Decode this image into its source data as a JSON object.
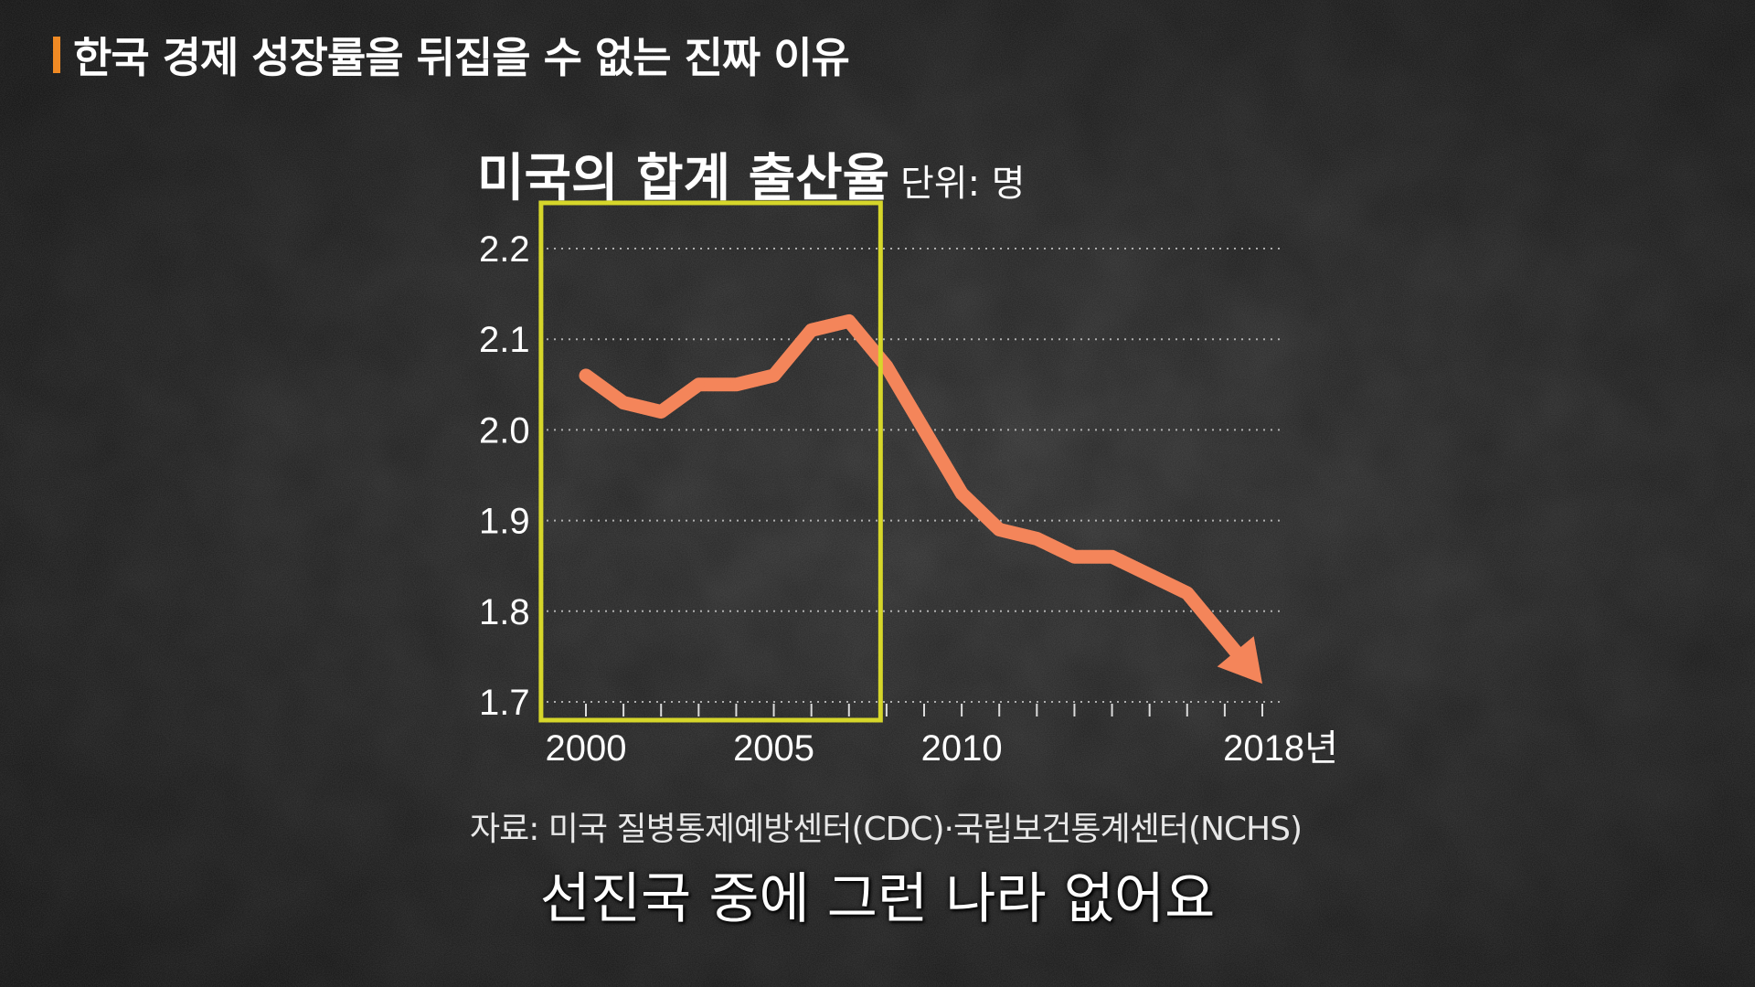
{
  "header": {
    "title": "한국 경제 성장률을 뒤집을 수 없는 진짜 이유",
    "accent_color": "#f08a24"
  },
  "chart_data": {
    "type": "line",
    "title": "미국의 합계 출산율",
    "unit_label": "단위: 명",
    "x": [
      2000,
      2001,
      2002,
      2003,
      2004,
      2005,
      2006,
      2007,
      2008,
      2009,
      2010,
      2011,
      2012,
      2013,
      2014,
      2015,
      2016,
      2017,
      2018
    ],
    "series": [
      {
        "values": [
          2.06,
          2.03,
          2.02,
          2.05,
          2.05,
          2.06,
          2.11,
          2.12,
          2.07,
          2.0,
          1.93,
          1.89,
          1.88,
          1.86,
          1.86,
          1.84,
          1.82,
          1.77,
          1.72
        ],
        "color": "#f4855a"
      }
    ],
    "yticks": [
      "2.2",
      "2.1",
      "2.0",
      "1.9",
      "1.8",
      "1.7"
    ],
    "ytick_values": [
      2.2,
      2.1,
      2.0,
      1.9,
      1.8,
      1.7
    ],
    "xtick_labels": [
      "2000",
      "2005",
      "2010",
      "2018년"
    ],
    "xtick_values": [
      2000,
      2005,
      2010,
      2018
    ],
    "ylim": [
      1.7,
      2.2
    ],
    "xlim": [
      2000,
      2018
    ],
    "grid": "horizontal-dotted",
    "line_ends_with_arrow": true,
    "highlight_box": {
      "x_range": [
        1999,
        2007.5
      ],
      "color": "#d6d62a"
    },
    "source": "자료: 미국 질병통제예방센터(CDC)·국립보건통계센터(NCHS)"
  },
  "subtitle": "선진국 중에 그런 나라 없어요"
}
